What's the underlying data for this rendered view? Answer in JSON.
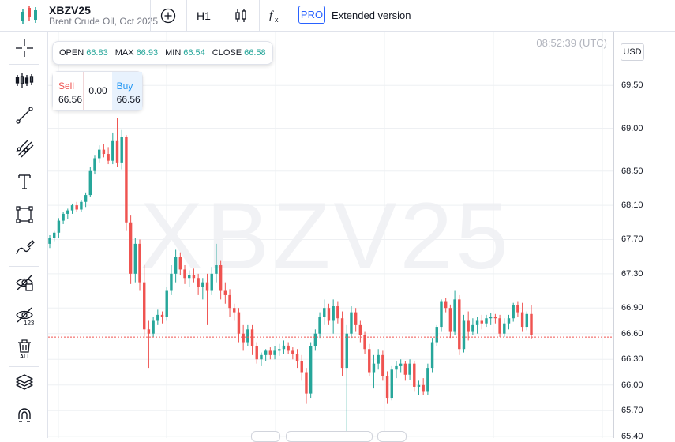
{
  "header": {
    "symbol": "XBZV25",
    "description": "Brent Crude Oil, Oct 2025",
    "timeframe": "H1",
    "pro_label": "PRO",
    "extended_label": "Extended version",
    "icons": [
      "add-circle-icon",
      "candles-icon",
      "function-icon"
    ]
  },
  "left_tools": [
    "crosshair-icon",
    "chart-type-icon",
    "trend-line-icon",
    "fib-icon",
    "text-icon",
    "rectangle-icon",
    "brush-icon",
    "hide-drawings-icon",
    "hide-indicators-icon",
    "delete-all-icon",
    "layers-icon",
    "magnet-icon"
  ],
  "chart": {
    "watermark": "XBZV25",
    "time": "08:52:39 (UTC)",
    "currency": "USD",
    "ohlc": {
      "open_label": "OPEN",
      "open": "66.83",
      "max_label": "MAX",
      "max": "66.93",
      "min_label": "MIN",
      "min": "66.54",
      "close_label": "CLOSE",
      "close": "66.58"
    },
    "trade": {
      "sell_label": "Sell",
      "sell": "66.56",
      "spread": "0.00",
      "buy_label": "Buy",
      "buy": "66.56"
    },
    "colors": {
      "up": "#26a69a",
      "down": "#ef5350",
      "price_line": "#ef5350"
    }
  },
  "chart_data": {
    "type": "candlestick",
    "y_ticks": [
      "69.50",
      "69.00",
      "68.50",
      "68.10",
      "67.70",
      "67.30",
      "66.90",
      "66.60",
      "66.30",
      "66.00",
      "65.70",
      "65.40"
    ],
    "y_range": [
      65.38,
      70.13
    ],
    "current_price": 66.56,
    "candles": [
      [
        67.65,
        67.75,
        67.6,
        67.72
      ],
      [
        67.72,
        67.8,
        67.68,
        67.78
      ],
      [
        67.78,
        67.95,
        67.72,
        67.92
      ],
      [
        67.92,
        68.02,
        67.88,
        68.0
      ],
      [
        68.0,
        68.06,
        67.94,
        68.04
      ],
      [
        68.04,
        68.12,
        68.0,
        68.1
      ],
      [
        68.1,
        68.14,
        68.02,
        68.05
      ],
      [
        68.05,
        68.16,
        68.02,
        68.14
      ],
      [
        68.14,
        68.25,
        68.08,
        68.22
      ],
      [
        68.22,
        68.55,
        68.2,
        68.5
      ],
      [
        68.5,
        68.68,
        68.46,
        68.65
      ],
      [
        68.65,
        68.8,
        68.6,
        68.75
      ],
      [
        68.75,
        68.82,
        68.66,
        68.7
      ],
      [
        68.7,
        68.78,
        68.58,
        68.62
      ],
      [
        68.62,
        68.95,
        68.58,
        68.85
      ],
      [
        68.85,
        69.12,
        68.55,
        68.6
      ],
      [
        68.6,
        68.98,
        68.52,
        68.9
      ],
      [
        68.9,
        68.92,
        67.8,
        67.9
      ],
      [
        67.9,
        67.98,
        67.18,
        67.3
      ],
      [
        67.3,
        67.72,
        67.2,
        67.65
      ],
      [
        67.65,
        67.7,
        67.1,
        67.2
      ],
      [
        67.2,
        67.4,
        66.55,
        66.65
      ],
      [
        66.65,
        66.75,
        66.2,
        66.6
      ],
      [
        66.6,
        66.8,
        66.56,
        66.75
      ],
      [
        66.75,
        66.88,
        66.7,
        66.82
      ],
      [
        66.82,
        66.86,
        66.72,
        66.8
      ],
      [
        66.8,
        67.15,
        66.75,
        67.1
      ],
      [
        67.1,
        67.4,
        67.05,
        67.3
      ],
      [
        67.3,
        67.58,
        67.2,
        67.5
      ],
      [
        67.5,
        67.55,
        67.28,
        67.35
      ],
      [
        67.35,
        67.4,
        67.18,
        67.25
      ],
      [
        67.25,
        67.34,
        67.15,
        67.28
      ],
      [
        67.28,
        67.36,
        67.2,
        67.25
      ],
      [
        67.25,
        67.3,
        67.05,
        67.15
      ],
      [
        67.15,
        67.25,
        67.0,
        67.2
      ],
      [
        67.2,
        67.3,
        66.7,
        67.1
      ],
      [
        67.1,
        67.38,
        67.05,
        67.3
      ],
      [
        67.3,
        67.65,
        67.2,
        67.4
      ],
      [
        67.4,
        67.45,
        67.0,
        67.1
      ],
      [
        67.1,
        67.2,
        66.95,
        67.05
      ],
      [
        67.05,
        67.12,
        66.8,
        66.9
      ],
      [
        66.9,
        66.95,
        66.75,
        66.85
      ],
      [
        66.85,
        66.9,
        66.5,
        66.6
      ],
      [
        66.6,
        66.7,
        66.4,
        66.5
      ],
      [
        66.5,
        66.7,
        66.45,
        66.65
      ],
      [
        66.65,
        66.7,
        66.35,
        66.45
      ],
      [
        66.45,
        66.5,
        66.25,
        66.3
      ],
      [
        66.3,
        66.38,
        66.22,
        66.35
      ],
      [
        66.35,
        66.42,
        66.28,
        66.4
      ],
      [
        66.4,
        66.44,
        66.3,
        66.35
      ],
      [
        66.35,
        66.45,
        66.3,
        66.4
      ],
      [
        66.4,
        66.48,
        66.34,
        66.42
      ],
      [
        66.42,
        66.52,
        66.36,
        66.46
      ],
      [
        66.46,
        66.5,
        66.36,
        66.4
      ],
      [
        66.4,
        66.44,
        66.3,
        66.36
      ],
      [
        66.36,
        66.42,
        66.2,
        66.28
      ],
      [
        66.28,
        66.35,
        66.05,
        66.15
      ],
      [
        66.15,
        66.2,
        65.78,
        65.9
      ],
      [
        65.9,
        66.5,
        65.85,
        66.45
      ],
      [
        66.45,
        66.65,
        66.4,
        66.6
      ],
      [
        66.6,
        66.85,
        66.55,
        66.8
      ],
      [
        66.8,
        67.0,
        66.7,
        66.9
      ],
      [
        66.9,
        66.95,
        66.7,
        66.75
      ],
      [
        66.75,
        67.0,
        66.6,
        66.92
      ],
      [
        66.92,
        66.98,
        66.72,
        66.78
      ],
      [
        66.78,
        66.86,
        66.1,
        66.2
      ],
      [
        66.2,
        66.7,
        65.46,
        66.6
      ],
      [
        66.6,
        66.92,
        66.55,
        66.85
      ],
      [
        66.85,
        66.9,
        66.62,
        66.7
      ],
      [
        66.7,
        66.75,
        66.5,
        66.58
      ],
      [
        66.58,
        66.62,
        66.36,
        66.42
      ],
      [
        66.42,
        66.48,
        66.1,
        66.15
      ],
      [
        66.15,
        66.35,
        65.96,
        66.25
      ],
      [
        66.25,
        66.42,
        66.18,
        66.35
      ],
      [
        66.35,
        66.4,
        66.05,
        66.1
      ],
      [
        66.1,
        66.16,
        65.78,
        65.85
      ],
      [
        65.85,
        66.22,
        65.82,
        66.18
      ],
      [
        66.18,
        66.28,
        66.08,
        66.22
      ],
      [
        66.22,
        66.3,
        66.15,
        66.25
      ],
      [
        66.25,
        66.28,
        66.05,
        66.12
      ],
      [
        66.12,
        66.3,
        66.06,
        66.25
      ],
      [
        66.25,
        66.28,
        65.92,
        65.98
      ],
      [
        65.98,
        66.05,
        65.88,
        66.0
      ],
      [
        66.0,
        66.08,
        65.88,
        65.92
      ],
      [
        65.92,
        66.25,
        65.88,
        66.2
      ],
      [
        66.2,
        66.55,
        66.15,
        66.5
      ],
      [
        66.5,
        66.7,
        66.45,
        66.68
      ],
      [
        66.68,
        67.0,
        66.62,
        66.98
      ],
      [
        66.98,
        67.02,
        66.85,
        66.9
      ],
      [
        66.9,
        66.94,
        66.55,
        66.62
      ],
      [
        66.62,
        67.1,
        66.58,
        67.0
      ],
      [
        67.0,
        67.05,
        66.35,
        66.42
      ],
      [
        66.42,
        66.82,
        66.38,
        66.75
      ],
      [
        66.75,
        66.86,
        66.52,
        66.62
      ],
      [
        66.62,
        66.78,
        66.58,
        66.7
      ],
      [
        66.7,
        66.8,
        66.6,
        66.75
      ],
      [
        66.75,
        66.82,
        66.65,
        66.72
      ],
      [
        66.72,
        66.82,
        66.68,
        66.78
      ],
      [
        66.78,
        66.84,
        66.7,
        66.8
      ],
      [
        66.8,
        66.83,
        66.72,
        66.78
      ],
      [
        66.78,
        66.82,
        66.56,
        66.6
      ],
      [
        66.6,
        66.78,
        66.56,
        66.72
      ],
      [
        66.72,
        66.82,
        66.65,
        66.78
      ],
      [
        66.78,
        66.96,
        66.74,
        66.93
      ],
      [
        66.93,
        66.98,
        66.8,
        66.85
      ],
      [
        66.85,
        66.96,
        66.62,
        66.68
      ],
      [
        66.68,
        66.86,
        66.64,
        66.83
      ],
      [
        66.83,
        66.93,
        66.54,
        66.58
      ]
    ]
  }
}
